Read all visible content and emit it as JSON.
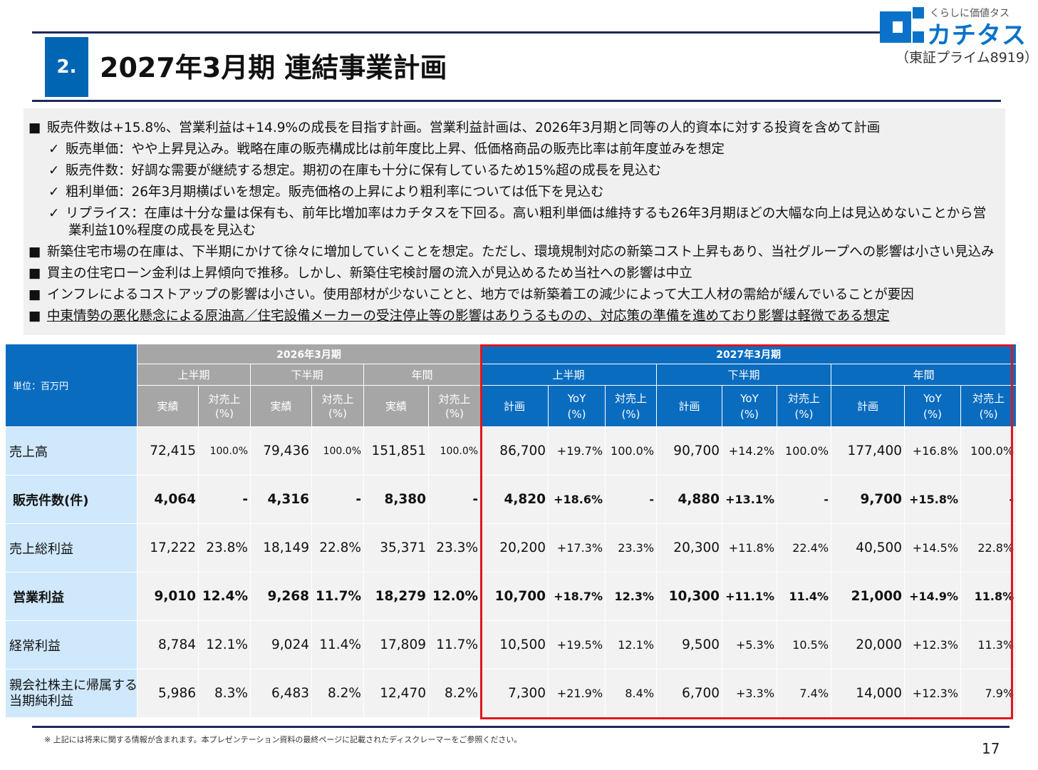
{
  "header": {
    "section_number": "2.",
    "title": "2027年3月期 連結事業計画",
    "logo_tagline": "くらしに価値タス",
    "logo_name": "カチタス",
    "exchange": "（東証プライム8919）"
  },
  "bullets": [
    {
      "marker": "■",
      "type": "main",
      "text": "販売件数は+15.8%、営業利益は+14.9%の成長を目指す計画。営業利益計画は、2026年3月期と同等の人的資本に対する投資を含めて計画"
    },
    {
      "marker": "✓",
      "type": "sub",
      "text": "販売単価：やや上昇見込み。戦略在庫の販売構成比は前年度比上昇、低価格商品の販売比率は前年度並みを想定"
    },
    {
      "marker": "✓",
      "type": "sub",
      "text": "販売件数：好調な需要が継続する想定。期初の在庫も十分に保有しているため15%超の成長を見込む"
    },
    {
      "marker": "✓",
      "type": "sub",
      "text": "粗利単価：26年3月期横ばいを想定。販売価格の上昇により粗利率については低下を見込む"
    },
    {
      "marker": "✓",
      "type": "sub",
      "text": "リプライス：在庫は十分な量は保有も、前年比増加率はカチタスを下回る。高い粗利単価は維持するも26年3月期ほどの大幅な向上は見込めないことから営"
    },
    {
      "marker": "",
      "type": "cont",
      "text": "業利益10%程度の成長を見込む"
    },
    {
      "marker": "■",
      "type": "main",
      "text": "新築住宅市場の在庫は、下半期にかけて徐々に増加していくことを想定。ただし、環境規制対応の新築コスト上昇もあり、当社グループへの影響は小さい見込み"
    },
    {
      "marker": "■",
      "type": "main",
      "text": "買主の住宅ローン金利は上昇傾向で推移。しかし、新築住宅検討層の流入が見込めるため当社への影響は中立"
    },
    {
      "marker": "■",
      "type": "main",
      "text": "インフレによるコストアップの影響は小さい。使用部材が少ないことと、地方では新築着工の減少によって大工人材の需給が緩んでいることが要因"
    },
    {
      "marker": "■",
      "type": "main",
      "underline": true,
      "text": "中東情勢の悪化懸念による原油高／住宅設備メーカーの受注停止等の影響はありうるものの、対応策の準備を進めており影響は軽微である想定"
    }
  ],
  "table": {
    "unit_label": "単位：百万円",
    "fy2026": "2026年3月期",
    "fy2027": "2027年3月期",
    "h1": "上半期",
    "h2": "下半期",
    "full": "年間",
    "actual": "実績",
    "plan": "計画",
    "ratio_top": "対売上",
    "ratio_bottom": "(%)",
    "yoy_top": "YoY",
    "yoy_bottom": "(%)",
    "rows": [
      {
        "label": "売上高",
        "label2": "",
        "bold": false,
        "v": [
          "72,415",
          "100.0%",
          "79,436",
          "100.0%",
          "151,851",
          "100.0%",
          "86,700",
          "+19.7%",
          "100.0%",
          "90,700",
          "+14.2%",
          "100.0%",
          "177,400",
          "+16.8%",
          "100.0%"
        ]
      },
      {
        "label": "販売件数(件)",
        "label2": "",
        "bold": true,
        "v": [
          "4,064",
          "-",
          "4,316",
          "-",
          "8,380",
          "-",
          "4,820",
          "+18.6%",
          "-",
          "4,880",
          "+13.1%",
          "-",
          "9,700",
          "+15.8%",
          "-"
        ]
      },
      {
        "label": "売上総利益",
        "label2": "",
        "bold": false,
        "v": [
          "17,222",
          "23.8%",
          "18,149",
          "22.8%",
          "35,371",
          "23.3%",
          "20,200",
          "+17.3%",
          "23.3%",
          "20,300",
          "+11.8%",
          "22.4%",
          "40,500",
          "+14.5%",
          "22.8%"
        ]
      },
      {
        "label": "営業利益",
        "label2": "",
        "bold": true,
        "v": [
          "9,010",
          "12.4%",
          "9,268",
          "11.7%",
          "18,279",
          "12.0%",
          "10,700",
          "+18.7%",
          "12.3%",
          "10,300",
          "+11.1%",
          "11.4%",
          "21,000",
          "+14.9%",
          "11.8%"
        ]
      },
      {
        "label": "経常利益",
        "label2": "",
        "bold": false,
        "v": [
          "8,784",
          "12.1%",
          "9,024",
          "11.4%",
          "17,809",
          "11.7%",
          "10,500",
          "+19.5%",
          "12.1%",
          "9,500",
          "+5.3%",
          "10.5%",
          "20,000",
          "+12.3%",
          "11.3%"
        ]
      },
      {
        "label": "親会社株主に帰属する",
        "label2": "当期純利益",
        "bold": false,
        "v": [
          "5,986",
          "8.3%",
          "6,483",
          "8.2%",
          "12,470",
          "8.2%",
          "7,300",
          "+21.9%",
          "8.4%",
          "6,700",
          "+3.3%",
          "7.4%",
          "14,000",
          "+12.3%",
          "7.9%"
        ]
      }
    ]
  },
  "footer": {
    "disclaimer": "※ 上記には将来に関する情報が含まれます。本プレゼンテーション資料の最終ページに記載されたディスクレーマーをご参照ください。",
    "page_number": "17"
  },
  "colors": {
    "navy": "#1a2a5a",
    "blue": "#0a6cbf",
    "gray_header": "#a6a6a6",
    "highlight_red": "#e0161e",
    "row_label_bg": "#cfe8fb"
  }
}
